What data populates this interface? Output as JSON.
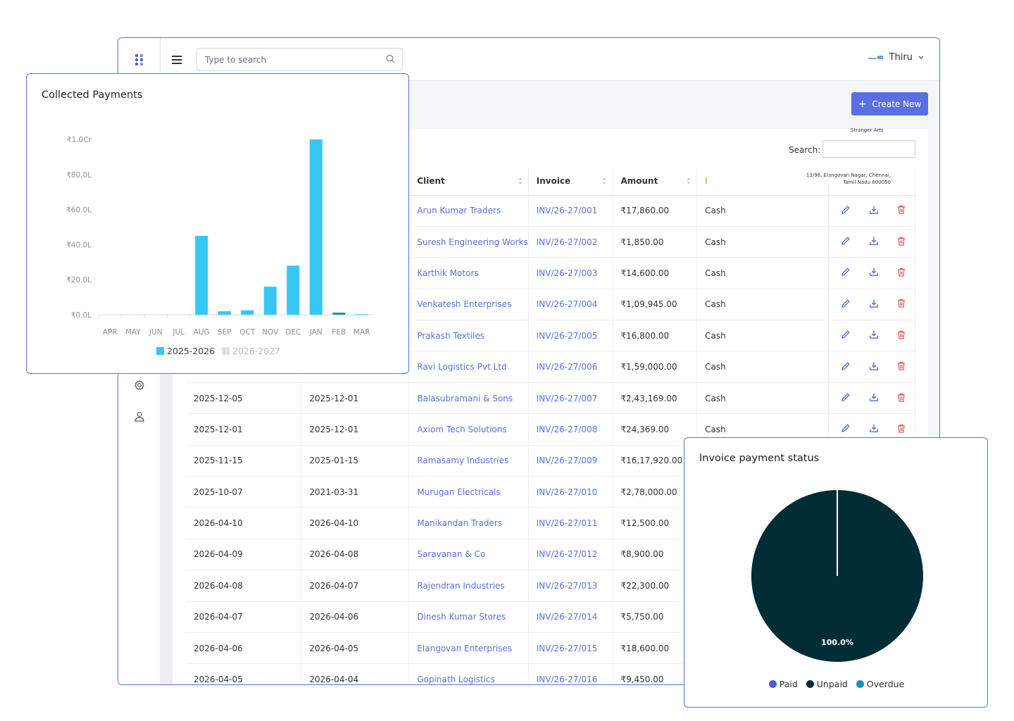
{
  "header": {
    "search_placeholder": "Type to search",
    "user_name": "Thiru"
  },
  "toolbar": {
    "create_label": "Create New"
  },
  "company": {
    "name": "Stranger Arts",
    "address": "13/96, Elangovan Nagar, Chennai, Tamil Nadu 600050"
  },
  "table": {
    "search_label": "Search:",
    "columns": {
      "client": "Client",
      "invoice": "Invoice",
      "amount": "Amount",
      "method": "I"
    },
    "rows": [
      {
        "date1": "",
        "date2": "",
        "client": "Arun Kumar Traders",
        "invoice": "INV/26-27/001",
        "amount": "₹17,860.00",
        "method": "Cash"
      },
      {
        "date1": "",
        "date2": "",
        "client": "Suresh Engineering Works",
        "invoice": "INV/26-27/002",
        "amount": "₹1,850.00",
        "method": "Cash"
      },
      {
        "date1": "",
        "date2": "",
        "client": "Karthik Motors",
        "invoice": "INV/26-27/003",
        "amount": "₹14,600.00",
        "method": "Cash"
      },
      {
        "date1": "",
        "date2": "",
        "client": "Venkatesh Enterprises",
        "invoice": "INV/26-27/004",
        "amount": "₹1,09,945.00",
        "method": "Cash"
      },
      {
        "date1": "",
        "date2": "",
        "client": "Prakash Textiles",
        "invoice": "INV/26-27/005",
        "amount": "₹16,800.00",
        "method": "Cash"
      },
      {
        "date1": "",
        "date2": "",
        "client": "Ravi Logistics Pvt Ltd",
        "invoice": "INV/26-27/006",
        "amount": "₹1,59,000.00",
        "method": "Cash"
      },
      {
        "date1": "2025-12-05",
        "date2": "2025-12-01",
        "client": "Balasubramani & Sons",
        "invoice": "INV/26-27/007",
        "amount": "₹2,43,169.00",
        "method": "Cash"
      },
      {
        "date1": "2025-12-01",
        "date2": "2025-12-01",
        "client": "Axiom Tech Solutions",
        "invoice": "INV/26-27/008",
        "amount": "₹24,369.00",
        "method": "Cash"
      },
      {
        "date1": "2025-11-15",
        "date2": "2025-01-15",
        "client": "Ramasamy Industries",
        "invoice": "INV/26-27/009",
        "amount": "₹16,17,920.00",
        "method": ""
      },
      {
        "date1": "2025-10-07",
        "date2": "2021-03-31",
        "client": "Murugan Electricals",
        "invoice": "INV/26-27/010",
        "amount": "₹2,78,000.00",
        "method": ""
      },
      {
        "date1": "2026-04-10",
        "date2": "2026-04-10",
        "client": "Manikandan Traders",
        "invoice": "INV/26-27/011",
        "amount": "₹12,500.00",
        "method": ""
      },
      {
        "date1": "2026-04-09",
        "date2": "2026-04-08",
        "client": "Saravanan & Co",
        "invoice": "INV/26-27/012",
        "amount": "₹8,900.00",
        "method": ""
      },
      {
        "date1": "2026-04-08",
        "date2": "2026-04-07",
        "client": "Rajendran Industries",
        "invoice": "INV/26-27/013",
        "amount": "₹22,300.00",
        "method": ""
      },
      {
        "date1": "2026-04-07",
        "date2": "2026-04-06",
        "client": "Dinesh Kumar Stores",
        "invoice": "INV/26-27/014",
        "amount": "₹5,750.00",
        "method": ""
      },
      {
        "date1": "2026-04-06",
        "date2": "2026-04-05",
        "client": "Elangovan Enterprises",
        "invoice": "INV/26-27/015",
        "amount": "₹18,600.00",
        "method": ""
      },
      {
        "date1": "2026-04-05",
        "date2": "2026-04-04",
        "client": "Gopinath Logistics",
        "invoice": "INV/26-27/016",
        "amount": "₹9,450.00",
        "method": ""
      }
    ]
  },
  "chart_data": [
    {
      "type": "bar",
      "title": "Collected Payments",
      "categories": [
        "APR",
        "MAY",
        "JUN",
        "JUL",
        "AUG",
        "SEP",
        "OCT",
        "NOV",
        "DEC",
        "JAN",
        "FEB",
        "MAR"
      ],
      "y_ticks": [
        "₹0.0L",
        "₹20.0L",
        "₹40.0L",
        "₹60.0L",
        "₹80.0L",
        "₹1.0Cr"
      ],
      "ylim": [
        0,
        100
      ],
      "y_unit": "lakh",
      "legend_position": "bottom",
      "series": [
        {
          "name": "2025-2026",
          "color": "#36c7f5",
          "values": [
            0,
            0,
            0,
            0,
            45,
            2,
            2.5,
            16,
            28,
            100,
            1.2,
            0.3
          ]
        },
        {
          "name": "2026-2027",
          "color": "#d9e1ec",
          "values": [
            0,
            0,
            0,
            0,
            0,
            0,
            0,
            0,
            0,
            0,
            0,
            0
          ]
        }
      ]
    },
    {
      "type": "pie",
      "title": "Invoice payment status",
      "slice_label": "100.0%",
      "legend_position": "bottom",
      "categories": [
        "Paid",
        "Unpaid",
        "Overdue"
      ],
      "values": [
        0,
        100,
        0
      ],
      "colors": [
        "#4f5bd5",
        "#032d35",
        "#1a91b5"
      ]
    }
  ]
}
